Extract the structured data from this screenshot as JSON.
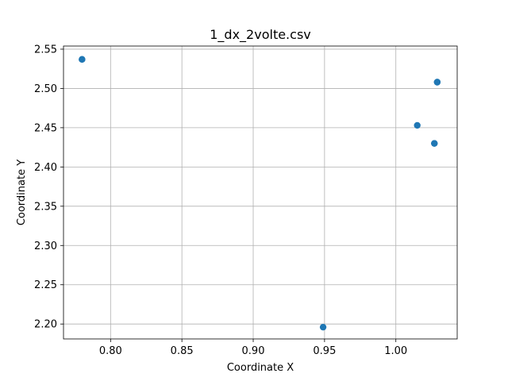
{
  "chart_data": {
    "type": "scatter",
    "title": "1_dx_2volte.csv",
    "xlabel": "Coordinate X",
    "ylabel": "Coordinate Y",
    "xlim": [
      0.767,
      1.043
    ],
    "ylim": [
      2.181,
      2.554
    ],
    "xticks": [
      0.8,
      0.85,
      0.9,
      0.95,
      1.0
    ],
    "xtick_labels": [
      "0.80",
      "0.85",
      "0.90",
      "0.95",
      "1.00"
    ],
    "yticks": [
      2.2,
      2.25,
      2.3,
      2.35,
      2.4,
      2.45,
      2.5,
      2.55
    ],
    "ytick_labels": [
      "2.20",
      "2.25",
      "2.30",
      "2.35",
      "2.40",
      "2.45",
      "2.50",
      "2.55"
    ],
    "grid": true,
    "marker_color": "#1f77b4",
    "points": [
      {
        "x": 0.78,
        "y": 2.537
      },
      {
        "x": 0.78,
        "y": 2.537
      },
      {
        "x": 0.949,
        "y": 2.196
      },
      {
        "x": 1.015,
        "y": 2.453
      },
      {
        "x": 1.027,
        "y": 2.43
      },
      {
        "x": 1.027,
        "y": 2.43
      },
      {
        "x": 1.029,
        "y": 2.508
      },
      {
        "x": 1.029,
        "y": 2.508
      }
    ]
  }
}
